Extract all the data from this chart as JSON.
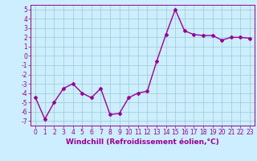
{
  "x": [
    0,
    1,
    2,
    3,
    4,
    5,
    6,
    7,
    8,
    9,
    10,
    11,
    12,
    13,
    14,
    15,
    16,
    17,
    18,
    19,
    20,
    21,
    22,
    23
  ],
  "y": [
    -4.5,
    -6.8,
    -5.0,
    -3.5,
    -3.0,
    -4.0,
    -4.5,
    -3.5,
    -6.3,
    -6.2,
    -4.5,
    -4.0,
    -3.8,
    -0.6,
    2.3,
    5.0,
    2.7,
    2.3,
    2.2,
    2.2,
    1.7,
    2.0,
    2.0,
    1.9
  ],
  "line_color": "#990099",
  "marker": "D",
  "markersize": 2,
  "linewidth": 1.0,
  "xlabel": "Windchill (Refroidissement éolien,°C)",
  "xlabel_fontsize": 6.5,
  "yticks": [
    -7,
    -6,
    -5,
    -4,
    -3,
    -2,
    -1,
    0,
    1,
    2,
    3,
    4,
    5
  ],
  "xticks": [
    0,
    1,
    2,
    3,
    4,
    5,
    6,
    7,
    8,
    9,
    10,
    11,
    12,
    13,
    14,
    15,
    16,
    17,
    18,
    19,
    20,
    21,
    22,
    23
  ],
  "ylim": [
    -7.5,
    5.5
  ],
  "xlim": [
    -0.5,
    23.5
  ],
  "bg_color": "#cceeff",
  "grid_color": "#99cccc",
  "tick_fontsize": 5.5,
  "fig_width": 3.2,
  "fig_height": 2.0,
  "dpi": 100
}
